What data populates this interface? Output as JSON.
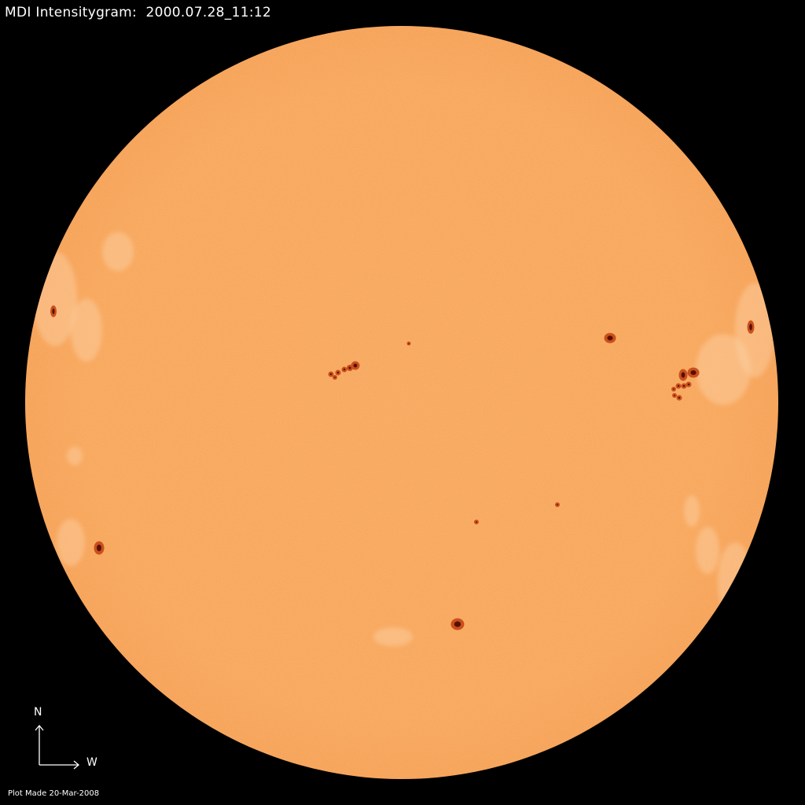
{
  "title": "MDI Intensitygram:  2000.07.28_11:12",
  "compass": {
    "north_label": "N",
    "west_label": "W"
  },
  "footer": "Plot Made 20-Mar-2008",
  "colors": {
    "background": "#000000",
    "disk": "#f8a65a",
    "umbra": "#5a0d02",
    "penumbra": "#c8501c",
    "facula": "#fcd2a8",
    "text": "#ffffff"
  }
}
